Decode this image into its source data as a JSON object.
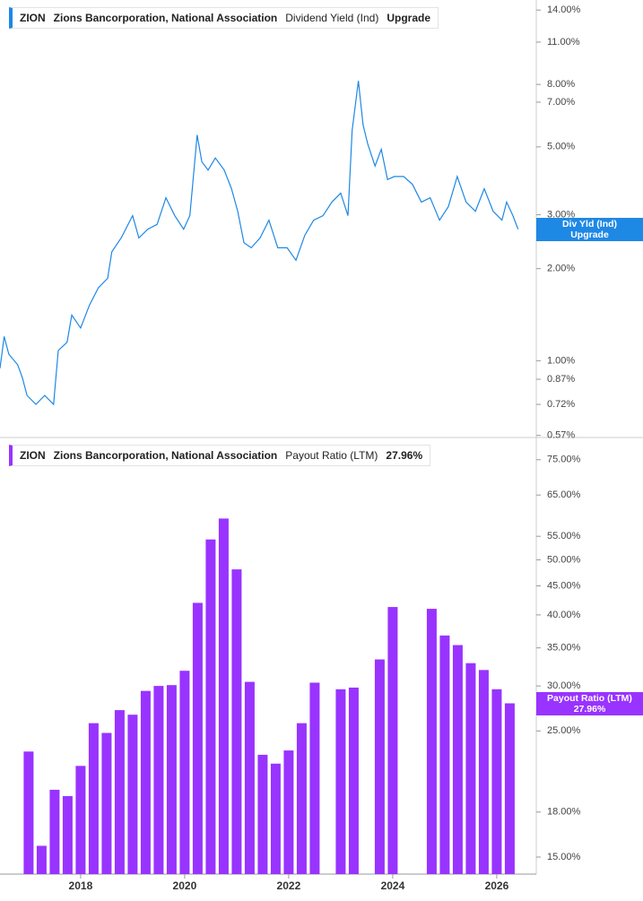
{
  "chart_data": [
    {
      "type": "line",
      "legend": {
        "ticker": "ZION",
        "company": "Zions Bancorporation, National Association",
        "metric": "Dividend Yield (Ind)",
        "current": "Upgrade"
      },
      "badge": "Div Yld (Ind)",
      "log_scale": true,
      "color": "#1e88e5",
      "x": [
        2016.45,
        2016.53,
        2016.62,
        2016.79,
        2016.88,
        2016.97,
        2017.14,
        2017.31,
        2017.48,
        2017.57,
        2017.74,
        2017.83,
        2018.0,
        2018.17,
        2018.34,
        2018.52,
        2018.6,
        2018.78,
        2019.0,
        2019.12,
        2019.29,
        2019.47,
        2019.64,
        2019.81,
        2019.98,
        2020.1,
        2020.24,
        2020.33,
        2020.45,
        2020.59,
        2020.76,
        2020.9,
        2021.02,
        2021.14,
        2021.28,
        2021.45,
        2021.62,
        2021.79,
        2021.97,
        2022.14,
        2022.31,
        2022.48,
        2022.66,
        2022.83,
        2023.0,
        2023.14,
        2023.22,
        2023.34,
        2023.43,
        2023.52,
        2023.66,
        2023.78,
        2023.9,
        2024.03,
        2024.21,
        2024.38,
        2024.55,
        2024.72,
        2024.9,
        2025.07,
        2025.24,
        2025.41,
        2025.59,
        2025.76,
        2025.93,
        2026.1,
        2026.19,
        2026.31,
        2026.41
      ],
      "series": [
        {
          "name": "Dividend Yield (Ind)",
          "color": "#1e88e5",
          "values": [
            0.945,
            1.2,
            1.05,
            0.97,
            0.88,
            0.77,
            0.72,
            0.77,
            0.72,
            1.08,
            1.15,
            1.41,
            1.28,
            1.52,
            1.73,
            1.86,
            2.27,
            2.52,
            2.98,
            2.52,
            2.69,
            2.79,
            3.41,
            2.98,
            2.69,
            2.98,
            5.47,
            4.47,
            4.2,
            4.6,
            4.2,
            3.65,
            3.08,
            2.43,
            2.34,
            2.52,
            2.88,
            2.34,
            2.34,
            2.13,
            2.57,
            2.88,
            2.98,
            3.3,
            3.53,
            2.98,
            5.66,
            8.22,
            5.9,
            5.11,
            4.33,
            4.91,
            3.91,
            4.0,
            4.0,
            3.77,
            3.3,
            3.41,
            2.88,
            3.19,
            4.0,
            3.3,
            3.08,
            3.65,
            3.08,
            2.88,
            3.3,
            2.98,
            2.69
          ]
        }
      ],
      "xlim": [
        2016.45,
        2026.76
      ],
      "ylim": [
        0.565,
        15.1
      ],
      "yticks": [
        {
          "value": 14,
          "label": "14.00%"
        },
        {
          "value": 11,
          "label": "11.00%"
        },
        {
          "value": 8,
          "label": "8.00%"
        },
        {
          "value": 7,
          "label": "7.00%"
        },
        {
          "value": 5,
          "label": "5.00%"
        },
        {
          "value": 3,
          "label": "3.00%"
        },
        {
          "value": 2,
          "label": "2.00%"
        },
        {
          "value": 1,
          "label": "1.00%"
        },
        {
          "value": 0.87,
          "label": "0.87%"
        },
        {
          "value": 0.72,
          "label": "0.72%"
        },
        {
          "value": 0.57,
          "label": "0.57%"
        }
      ]
    },
    {
      "type": "bar",
      "legend": {
        "ticker": "ZION",
        "company": "Zions Bancorporation, National Association",
        "metric": "Payout Ratio (LTM)"
      },
      "log_scale": true,
      "color": "#9933ff",
      "x": [
        2017.0,
        2017.25,
        2017.5,
        2017.75,
        2018.0,
        2018.25,
        2018.5,
        2018.75,
        2019.0,
        2019.25,
        2019.5,
        2019.75,
        2020.0,
        2020.25,
        2020.5,
        2020.75,
        2021.0,
        2021.25,
        2021.5,
        2021.75,
        2022.0,
        2022.25,
        2022.5,
        2022.75,
        2023.0,
        2023.25,
        2023.5,
        2023.75,
        2024.0,
        2024.25,
        2024.5,
        2024.75,
        2025.0,
        2025.25,
        2025.5,
        2025.75,
        2026.0,
        2026.25
      ],
      "series": [
        {
          "name": "Payout Ratio (LTM)",
          "color": "#9933ff",
          "values": [
            23.0,
            15.7,
            19.7,
            19.2,
            21.7,
            25.8,
            24.8,
            27.2,
            26.7,
            29.4,
            30.0,
            30.1,
            31.9,
            42.0,
            54.3,
            59.1,
            48.1,
            30.5,
            22.7,
            21.9,
            23.1,
            25.8,
            30.4,
            null,
            29.6,
            29.8,
            null,
            33.4,
            41.3,
            null,
            null,
            41.0,
            36.8,
            35.4,
            32.9,
            32.0,
            29.6,
            27.96
          ],
          "value_labels": [
            null,
            null,
            null,
            null,
            null,
            null,
            null,
            null,
            null,
            null,
            null,
            null,
            null,
            null,
            null,
            null,
            null,
            null,
            null,
            null,
            null,
            null,
            null,
            null,
            null,
            null,
            null,
            null,
            null,
            null,
            null,
            null,
            null,
            null,
            null,
            null,
            null,
            "27.96%"
          ]
        }
      ],
      "xlim": [
        2016.45,
        2026.76
      ],
      "xticks": [
        2018,
        2020,
        2022,
        2024,
        2026
      ],
      "ylim": [
        14,
        80
      ],
      "yticks": [
        {
          "value": 75,
          "label": "75.00%"
        },
        {
          "value": 65,
          "label": "65.00%"
        },
        {
          "value": 55,
          "label": "55.00%"
        },
        {
          "value": 50,
          "label": "50.00%"
        },
        {
          "value": 45,
          "label": "45.00%"
        },
        {
          "value": 40,
          "label": "40.00%"
        },
        {
          "value": 35,
          "label": "35.00%"
        },
        {
          "value": 30,
          "label": "30.00%"
        },
        {
          "value": 25,
          "label": "25.00%"
        },
        {
          "value": 18,
          "label": "18.00%"
        },
        {
          "value": 15,
          "label": "15.00%"
        }
      ]
    }
  ]
}
